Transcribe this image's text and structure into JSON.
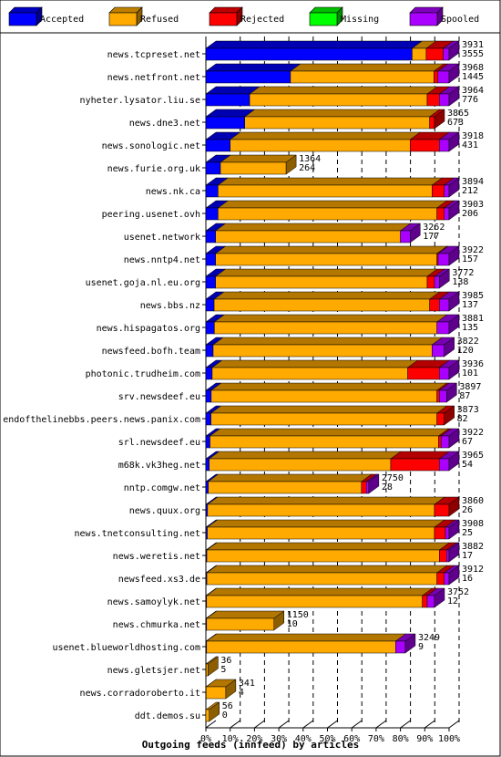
{
  "chart_data": {
    "type": "bar",
    "orientation": "horizontal",
    "stacked": true,
    "percent_scale": true,
    "xlabel": "Outgoing feeds (innfeed) by articles",
    "x_ticks": [
      "0%",
      "10%",
      "20%",
      "30%",
      "40%",
      "50%",
      "60%",
      "70%",
      "80%",
      "90%",
      "100%"
    ],
    "grid": true,
    "legend_position": "top",
    "series": [
      {
        "name": "Accepted",
        "color": "#0000ff"
      },
      {
        "name": "Refused",
        "color": "#ffaa00"
      },
      {
        "name": "Rejected",
        "color": "#ff0000"
      },
      {
        "name": "Missing",
        "color": "#00ff00"
      },
      {
        "name": "Spooled",
        "color": "#aa00ff"
      }
    ],
    "rows": [
      {
        "host": "news.tcpreset.net",
        "offered": "3931",
        "accepted": "3555",
        "seg": [
          0.848,
          0.058,
          0.07,
          0,
          0.024
        ]
      },
      {
        "host": "news.netfront.net",
        "offered": "3968",
        "accepted": "1445",
        "seg": [
          0.348,
          0.59,
          0.016,
          0,
          0.046
        ]
      },
      {
        "host": "nyheter.lysator.liu.se",
        "offered": "3964",
        "accepted": "776",
        "seg": [
          0.18,
          0.73,
          0.05,
          0,
          0.04
        ]
      },
      {
        "host": "news.dne3.net",
        "offered": "3865",
        "accepted": "673",
        "seg": [
          0.16,
          0.76,
          0.02,
          0,
          0
        ]
      },
      {
        "host": "news.sonologic.net",
        "offered": "3918",
        "accepted": "431",
        "seg": [
          0.1,
          0.74,
          0.12,
          0,
          0.04
        ]
      },
      {
        "host": "news.furie.org.uk",
        "offered": "1364",
        "accepted": "264",
        "seg": [
          0.06,
          0.27,
          0,
          0,
          0
        ]
      },
      {
        "host": "news.nk.ca",
        "offered": "3894",
        "accepted": "212",
        "seg": [
          0.05,
          0.88,
          0.05,
          0,
          0.02
        ]
      },
      {
        "host": "peering.usenet.ovh",
        "offered": "3903",
        "accepted": "206",
        "seg": [
          0.05,
          0.9,
          0.03,
          0,
          0.02
        ]
      },
      {
        "host": "usenet.network",
        "offered": "3262",
        "accepted": "177",
        "seg": [
          0.04,
          0.76,
          0,
          0,
          0.04
        ]
      },
      {
        "host": "news.nntp4.net",
        "offered": "3922",
        "accepted": "157",
        "seg": [
          0.04,
          0.91,
          0.005,
          0,
          0.045
        ]
      },
      {
        "host": "usenet.goja.nl.eu.org",
        "offered": "3772",
        "accepted": "138",
        "seg": [
          0.04,
          0.87,
          0.03,
          0,
          0.02
        ]
      },
      {
        "host": "news.bbs.nz",
        "offered": "3985",
        "accepted": "137",
        "seg": [
          0.034,
          0.886,
          0.04,
          0,
          0.04
        ]
      },
      {
        "host": "news.hispagatos.org",
        "offered": "3881",
        "accepted": "135",
        "seg": [
          0.035,
          0.915,
          0,
          0,
          0.05
        ]
      },
      {
        "host": "newsfeed.bofh.team",
        "offered": "3822",
        "accepted": "120",
        "seg": [
          0.03,
          0.9,
          0,
          0,
          0.05
        ]
      },
      {
        "host": "photonic.trudheim.com",
        "offered": "3936",
        "accepted": "101",
        "seg": [
          0.026,
          0.804,
          0.13,
          0,
          0.04
        ]
      },
      {
        "host": "srv.newsdeef.eu",
        "offered": "3897",
        "accepted": "87",
        "seg": [
          0.022,
          0.928,
          0.01,
          0,
          0.03
        ]
      },
      {
        "host": "endofthelinebbs.peers.news.panix.com",
        "offered": "3873",
        "accepted": "82",
        "seg": [
          0.021,
          0.929,
          0.03,
          0,
          0
        ]
      },
      {
        "host": "srl.newsdeef.eu",
        "offered": "3922",
        "accepted": "67",
        "seg": [
          0.017,
          0.94,
          0.01,
          0,
          0.033
        ]
      },
      {
        "host": "m68k.vk3heg.net",
        "offered": "3965",
        "accepted": "54",
        "seg": [
          0.014,
          0.746,
          0.2,
          0,
          0.04
        ]
      },
      {
        "host": "nntp.comgw.net",
        "offered": "2750",
        "accepted": "28",
        "seg": [
          0.01,
          0.63,
          0.02,
          0,
          0.01
        ]
      },
      {
        "host": "news.quux.org",
        "offered": "3860",
        "accepted": "26",
        "seg": [
          0.007,
          0.933,
          0.06,
          0,
          0
        ]
      },
      {
        "host": "news.tnetconsulting.net",
        "offered": "3908",
        "accepted": "25",
        "seg": [
          0.006,
          0.934,
          0.045,
          0,
          0.015
        ]
      },
      {
        "host": "news.weretis.net",
        "offered": "3882",
        "accepted": "17",
        "seg": [
          0.004,
          0.956,
          0.03,
          0,
          0.01
        ]
      },
      {
        "host": "newsfeed.xs3.de",
        "offered": "3912",
        "accepted": "16",
        "seg": [
          0.004,
          0.946,
          0.03,
          0,
          0.02
        ]
      },
      {
        "host": "news.samoylyk.net",
        "offered": "3752",
        "accepted": "12",
        "seg": [
          0.003,
          0.887,
          0.02,
          0,
          0.03
        ]
      },
      {
        "host": "news.chmurka.net",
        "offered": "1150",
        "accepted": "10",
        "seg": [
          0.003,
          0.277,
          0,
          0,
          0
        ]
      },
      {
        "host": "usenet.blueworldhosting.com",
        "offered": "3249",
        "accepted": "9",
        "seg": [
          0.003,
          0.777,
          0,
          0,
          0.04
        ]
      },
      {
        "host": "news.gletsjer.net",
        "offered": "36",
        "accepted": "5",
        "seg": [
          0.001,
          0.008,
          0,
          0,
          0
        ]
      },
      {
        "host": "news.corradoroberto.it",
        "offered": "341",
        "accepted": "4",
        "seg": [
          0.001,
          0.081,
          0,
          0,
          0
        ]
      },
      {
        "host": "ddt.demos.su",
        "offered": "56",
        "accepted": "0",
        "seg": [
          0,
          0.014,
          0,
          0,
          0
        ]
      }
    ]
  }
}
